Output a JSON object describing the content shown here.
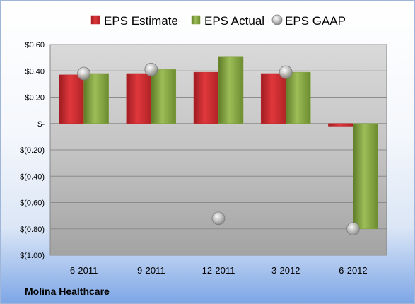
{
  "company": "Molina Healthcare",
  "chart_data": {
    "type": "bar",
    "categories": [
      "6-2011",
      "9-2011",
      "12-2011",
      "3-2012",
      "6-2012"
    ],
    "series": [
      {
        "name": "EPS Estimate",
        "kind": "bar",
        "color": "#c0282d",
        "values": [
          0.37,
          0.38,
          0.39,
          0.38,
          -0.02
        ]
      },
      {
        "name": "EPS Actual",
        "kind": "bar",
        "color": "#7f9f3a",
        "values": [
          0.38,
          0.41,
          0.51,
          0.39,
          -0.8
        ]
      },
      {
        "name": "EPS GAAP",
        "kind": "marker",
        "color": "#a9a9a9",
        "values": [
          0.38,
          0.41,
          -0.72,
          0.39,
          -0.8
        ]
      }
    ],
    "yticks": [
      0.6,
      0.4,
      0.2,
      0,
      -0.2,
      -0.4,
      -0.6,
      -0.8,
      -1.0
    ],
    "ytick_labels": [
      "$0.60",
      "$0.40",
      "$0.20",
      "$-",
      "$(0.20)",
      "$(0.40)",
      "$(0.60)",
      "$(0.80)",
      "$(1.00)"
    ],
    "ylim": [
      -1.0,
      0.6
    ],
    "grid": true,
    "legend_position": "top"
  }
}
